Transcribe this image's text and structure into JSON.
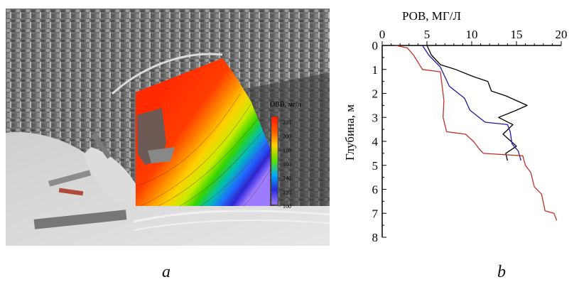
{
  "captions": {
    "a": "a",
    "b": "b"
  },
  "map_panel": {
    "type": "aerial-photo-with-contour-overlay",
    "colorbar": {
      "title": "ОВВ, мг/л",
      "ticks": [
        "220",
        "200",
        "180",
        "160",
        "140",
        "120",
        "100"
      ],
      "colors": [
        "#ff1a00",
        "#ff6a00",
        "#ffd200",
        "#5ee000",
        "#00a8ff",
        "#2a2adc",
        "#9b7bff"
      ]
    }
  },
  "chart_data": {
    "type": "line",
    "title": "",
    "xlabel": "РОВ, МГ/Л",
    "ylabel": "Глубина, м",
    "xlim": [
      0,
      20
    ],
    "ylim": [
      0,
      8
    ],
    "y_inverted": true,
    "x_axis_position": "top",
    "xticks": [
      "0",
      "5",
      "10",
      "15",
      "20"
    ],
    "yticks": [
      "0",
      "1",
      "2",
      "3",
      "4",
      "5",
      "6",
      "7",
      "8"
    ],
    "series": [
      {
        "color": "#000000",
        "points": [
          [
            5,
            0
          ],
          [
            5.5,
            0.4
          ],
          [
            6.5,
            0.8
          ],
          [
            8.2,
            1.0
          ],
          [
            10.2,
            1.3
          ],
          [
            11.8,
            1.5
          ],
          [
            12.2,
            1.9
          ],
          [
            13.8,
            2.1
          ],
          [
            16.2,
            2.5
          ],
          [
            15,
            2.7
          ],
          [
            13,
            3.0
          ],
          [
            14.6,
            3.3
          ],
          [
            13.5,
            3.7
          ],
          [
            15,
            4.2
          ],
          [
            13.8,
            4.5
          ],
          [
            14,
            4.8
          ]
        ]
      },
      {
        "color": "#1a1aa0",
        "points": [
          [
            4.5,
            0
          ],
          [
            5.2,
            0.4
          ],
          [
            6.5,
            0.9
          ],
          [
            7,
            1.3
          ],
          [
            7.5,
            1.7
          ],
          [
            9.2,
            2.2
          ],
          [
            9.8,
            2.7
          ],
          [
            11.5,
            3.2
          ],
          [
            14,
            3.3
          ],
          [
            14.3,
            3.6
          ],
          [
            14.5,
            4.1
          ],
          [
            15.2,
            4.4
          ],
          [
            15.5,
            4.8
          ]
        ]
      },
      {
        "color": "#c0302a",
        "points": [
          [
            1.5,
            0
          ],
          [
            2.8,
            0.1
          ],
          [
            3.5,
            0.4
          ],
          [
            4.5,
            1.0
          ],
          [
            6.5,
            1.1
          ],
          [
            6.7,
            1.7
          ],
          [
            6.9,
            2.3
          ],
          [
            6.8,
            3.0
          ],
          [
            7.2,
            3.6
          ],
          [
            9.3,
            3.7
          ],
          [
            10.2,
            4.0
          ],
          [
            10.8,
            4.3
          ],
          [
            11.3,
            4.5
          ],
          [
            15.7,
            4.6
          ],
          [
            16,
            5.0
          ],
          [
            16.6,
            5.3
          ],
          [
            17,
            5.9
          ],
          [
            17.8,
            6.2
          ],
          [
            18.2,
            6.9
          ],
          [
            19.2,
            7.0
          ],
          [
            19.5,
            7.3
          ]
        ]
      }
    ]
  }
}
